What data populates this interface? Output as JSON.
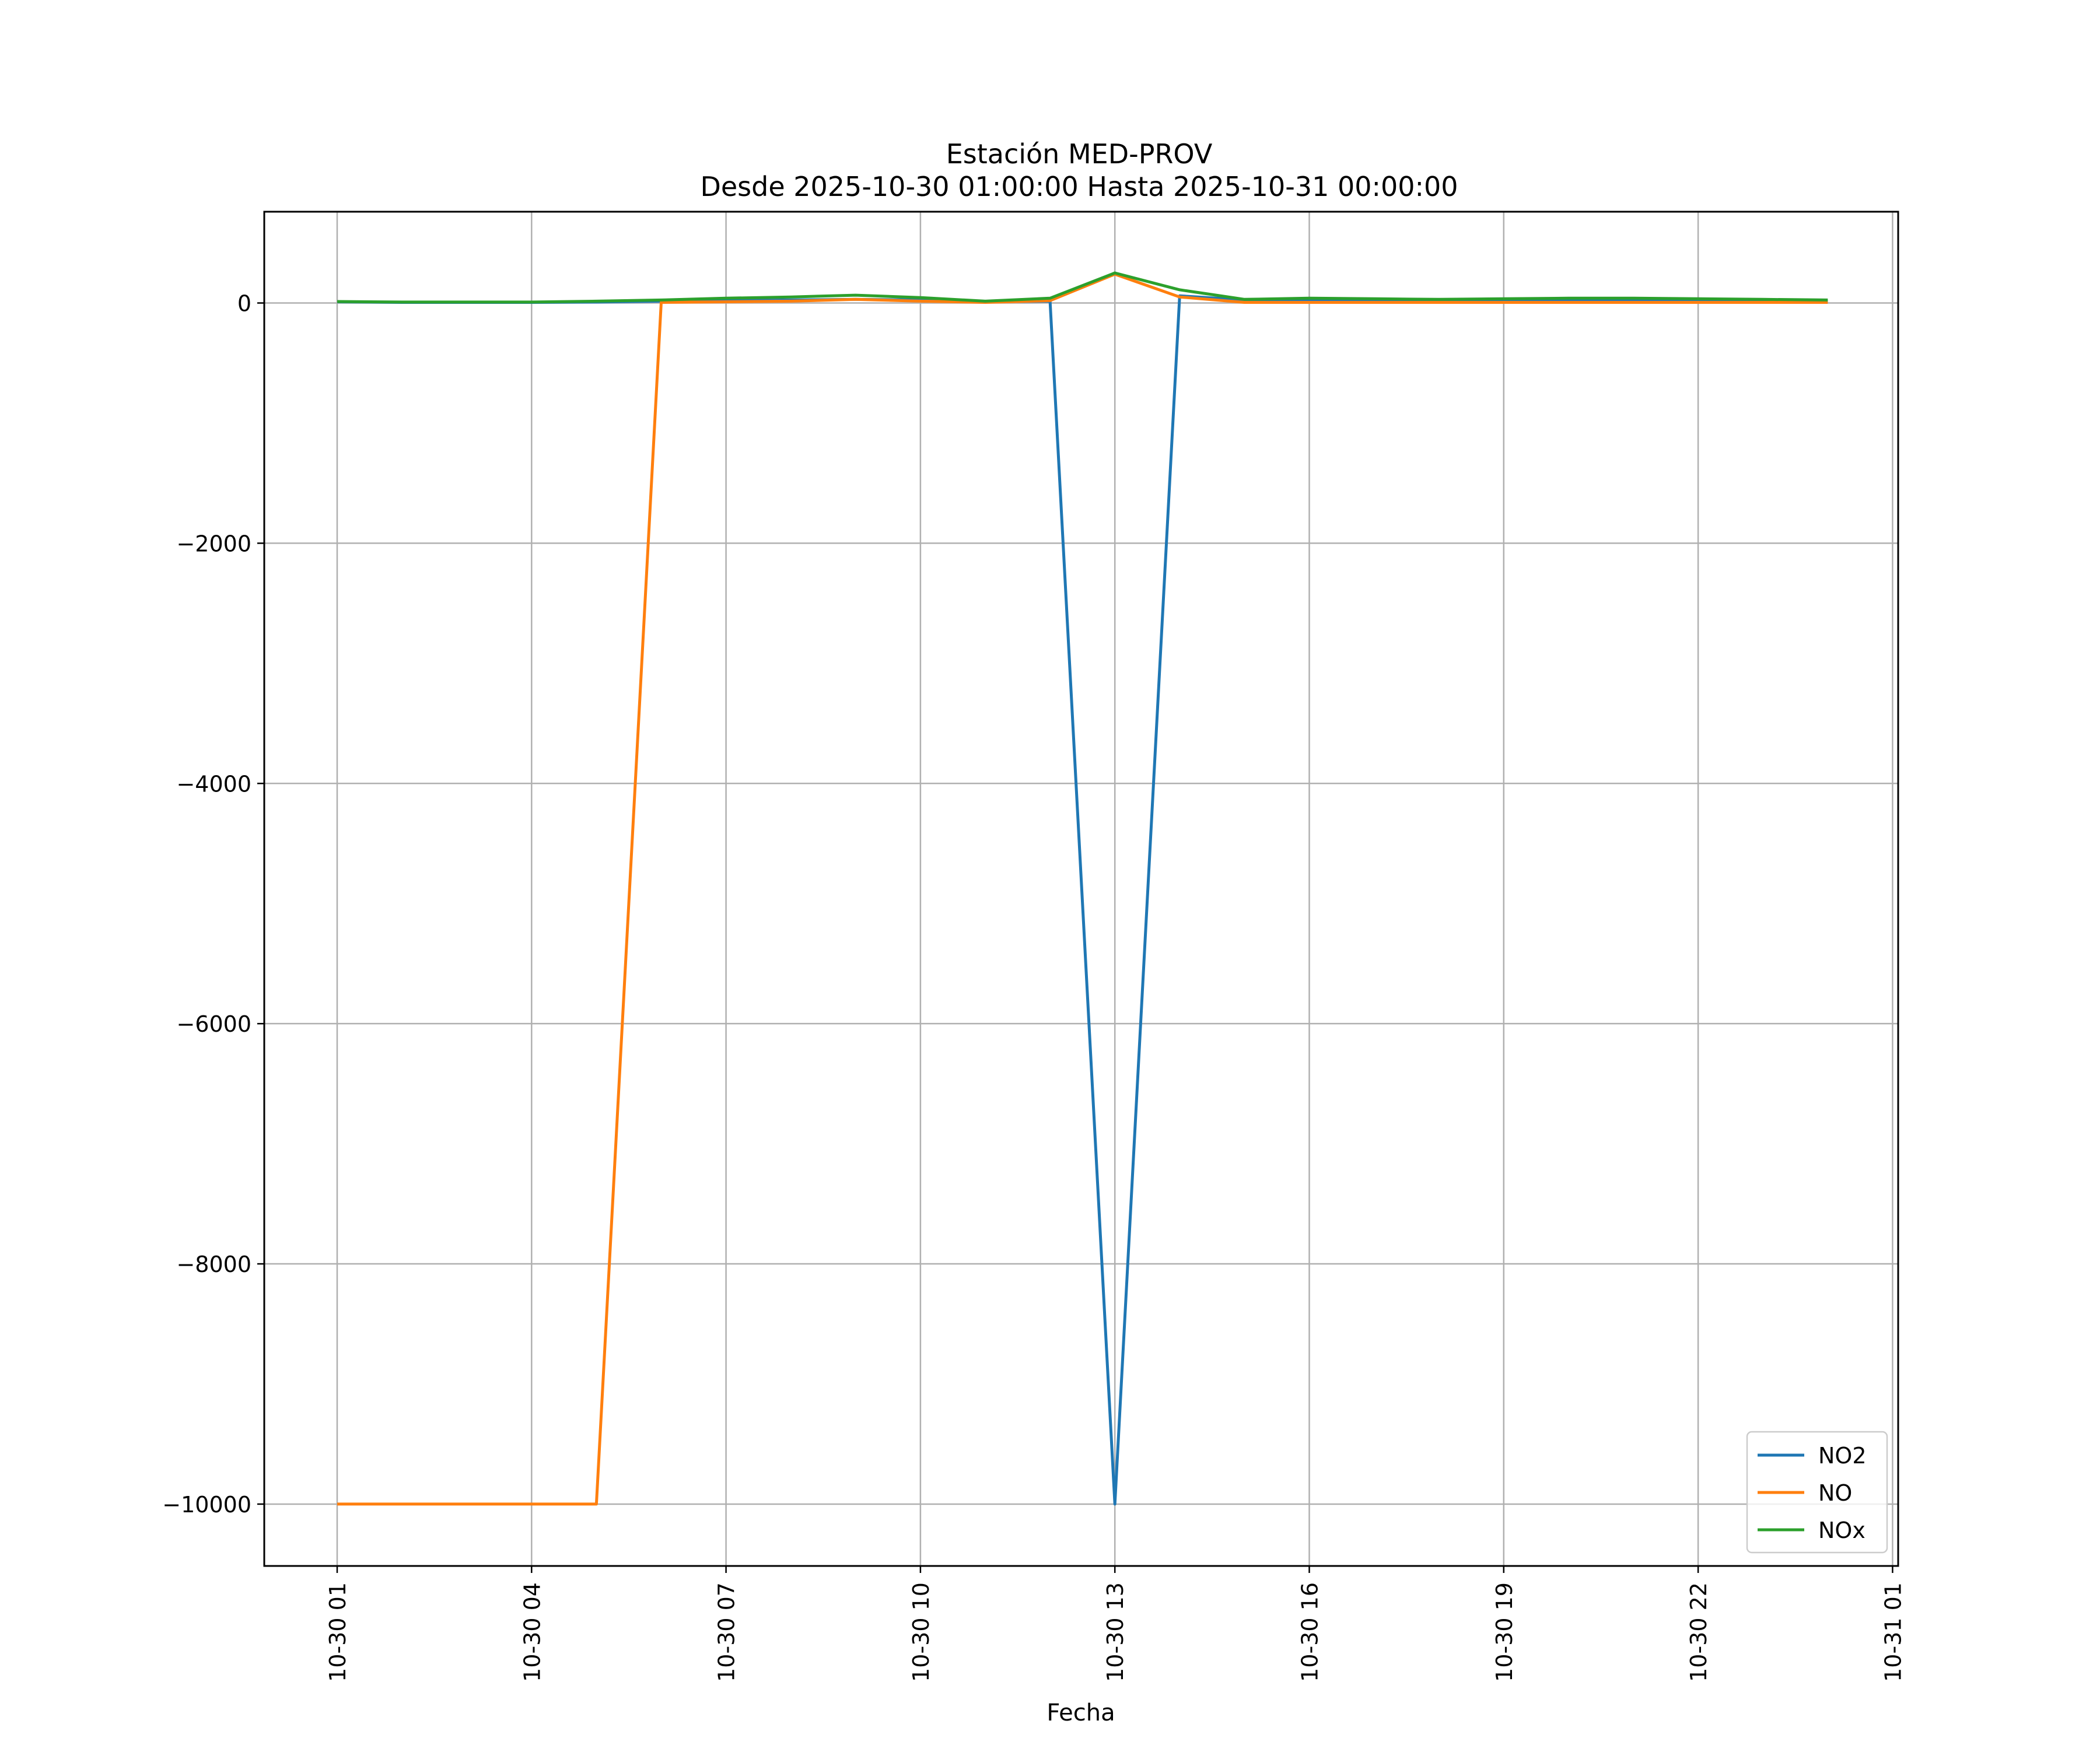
{
  "chart_data": {
    "type": "line",
    "title": "Estación MED-PROV",
    "subtitle": "Desde 2025-10-30 01:00:00 Hasta 2025-10-31 00:00:00",
    "xlabel": "Fecha",
    "ylabel": "",
    "x": [
      "2025-10-30 01:00",
      "2025-10-30 02:00",
      "2025-10-30 03:00",
      "2025-10-30 04:00",
      "2025-10-30 05:00",
      "2025-10-30 06:00",
      "2025-10-30 07:00",
      "2025-10-30 08:00",
      "2025-10-30 09:00",
      "2025-10-30 10:00",
      "2025-10-30 11:00",
      "2025-10-30 12:00",
      "2025-10-30 13:00",
      "2025-10-30 14:00",
      "2025-10-30 15:00",
      "2025-10-30 16:00",
      "2025-10-30 17:00",
      "2025-10-30 18:00",
      "2025-10-30 19:00",
      "2025-10-30 20:00",
      "2025-10-30 21:00",
      "2025-10-30 22:00",
      "2025-10-30 23:00",
      "2025-10-31 00:00"
    ],
    "series": [
      {
        "name": "NO2",
        "color": "#1f77b4",
        "values": [
          10,
          5,
          5,
          5,
          8,
          15,
          20,
          25,
          30,
          25,
          10,
          15,
          -10000,
          60,
          25,
          20,
          20,
          15,
          20,
          25,
          25,
          20,
          18,
          15
        ]
      },
      {
        "name": "NO",
        "color": "#ff7f0e",
        "values": [
          -10000,
          -10000,
          -10000,
          -10000,
          -10000,
          5,
          10,
          15,
          30,
          15,
          5,
          20,
          240,
          50,
          5,
          5,
          5,
          5,
          5,
          5,
          5,
          5,
          5,
          5
        ]
      },
      {
        "name": "NOx",
        "color": "#2ca02c",
        "values": [
          12,
          8,
          8,
          8,
          15,
          25,
          40,
          50,
          65,
          45,
          15,
          40,
          250,
          110,
          30,
          40,
          35,
          30,
          35,
          40,
          40,
          35,
          30,
          25
        ]
      }
    ],
    "xticks": [
      "10-30 01",
      "10-30 04",
      "10-30 07",
      "10-30 10",
      "10-30 13",
      "10-30 16",
      "10-30 19",
      "10-30 22",
      "10-31 01"
    ],
    "yticks": [
      0,
      -2000,
      -4000,
      -6000,
      -8000,
      -10000
    ],
    "ytick_labels": [
      "0",
      "−2000",
      "−4000",
      "−6000",
      "−8000",
      "−10000"
    ],
    "xlim": [
      "2025-10-30 00:00 (approx.)",
      "2025-10-31 01:10 (approx.)"
    ],
    "ylim": [
      -10515,
      760
    ],
    "grid": true,
    "legend_position": "lower-right"
  }
}
